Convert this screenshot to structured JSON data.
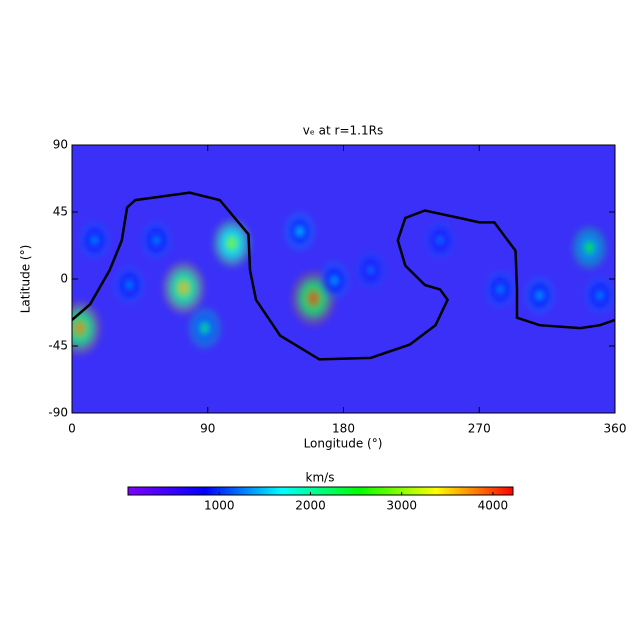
{
  "chart_data": {
    "type": "heatmap",
    "title": "vₑ at r=1.1Rs",
    "x_label": "Longitude (°)",
    "y_label": "Latitude (°)",
    "xlim": [
      0,
      360
    ],
    "xticks": [
      0,
      90,
      180,
      270,
      360
    ],
    "ylim": [
      -90,
      90
    ],
    "yticks": [
      90,
      45,
      0,
      -45,
      -90
    ],
    "background_color": "#3a30f8",
    "spots": {
      "x": [
        5,
        74,
        106,
        160,
        88,
        343,
        151,
        174,
        15,
        38,
        310,
        284,
        244,
        198,
        56,
        350
      ],
      "y": [
        -33,
        -6,
        24,
        -13,
        -33,
        21,
        32,
        -1,
        26,
        -4,
        -11,
        -7,
        26,
        6,
        26,
        -11
      ],
      "values": [
        3800,
        3600,
        3000,
        4000,
        2100,
        2400,
        1600,
        1500,
        1400,
        1400,
        1500,
        1400,
        1300,
        1300,
        1400,
        1400
      ]
    },
    "contour": {
      "color": "#000000",
      "x": [
        0,
        12,
        25,
        33,
        36.5,
        42,
        78,
        98,
        117,
        118,
        122,
        138,
        164,
        198,
        224,
        241,
        249,
        244,
        234,
        221,
        216,
        221,
        234,
        257,
        270,
        280,
        294,
        295,
        295,
        310,
        337,
        350,
        360
      ],
      "y": [
        -27.5,
        -17,
        6,
        26,
        48,
        53,
        58,
        53,
        30,
        6,
        -14,
        -38,
        -54,
        -53,
        -44,
        -31,
        -14,
        -7,
        -4,
        9,
        26,
        41,
        46,
        41,
        38,
        38,
        19,
        -7,
        -26,
        -31,
        -33,
        -31,
        -27.5
      ]
    },
    "colorbar": {
      "label": "km/s",
      "clim": [
        0,
        4220
      ],
      "ticks": [
        1000,
        2000,
        3000,
        4000
      ],
      "colormap": [
        "#8000ff",
        "#0000ff",
        "#00ffff",
        "#00ff00",
        "#ffff00",
        "#ff0000"
      ]
    }
  }
}
